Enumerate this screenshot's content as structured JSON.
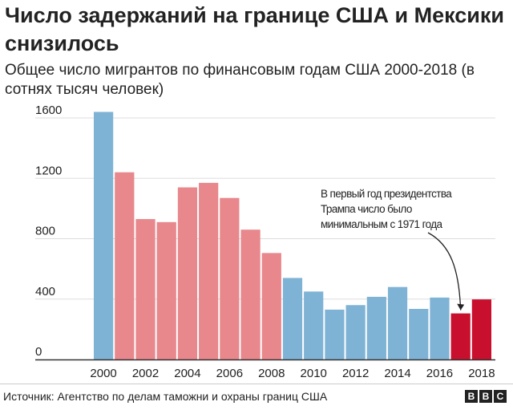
{
  "header": {
    "title": "Число задержаний на границе США и Мексики снизилось",
    "subtitle": "Общее число мигрантов по финансовым годам США 2000-2018 (в сотнях тысяч человек)"
  },
  "chart_data": {
    "type": "bar",
    "title": "Число задержаний на границе США и Мексики снизилось",
    "subtitle": "Общее число мигрантов по финансовым годам США 2000-2018 (в сотнях тысяч человек)",
    "categories": [
      "2000",
      "2001",
      "2002",
      "2003",
      "2004",
      "2005",
      "2006",
      "2007",
      "2008",
      "2009",
      "2010",
      "2011",
      "2012",
      "2013",
      "2014",
      "2015",
      "2016",
      "2017",
      "2018"
    ],
    "values": [
      1640,
      1240,
      930,
      910,
      1140,
      1170,
      1070,
      860,
      705,
      540,
      450,
      330,
      360,
      415,
      480,
      335,
      410,
      305,
      398
    ],
    "x_tick_labels": [
      "2000",
      "",
      "2002",
      "",
      "2004",
      "",
      "2006",
      "",
      "2008",
      "",
      "2010",
      "",
      "2012",
      "",
      "2014",
      "",
      "2016",
      "",
      "2018"
    ],
    "y_ticks": [
      0,
      400,
      800,
      1200,
      1600
    ],
    "y_tick_labels": [
      "0",
      "400",
      "800",
      "1200",
      "1600"
    ],
    "ylim": [
      0,
      1700
    ],
    "grid": true,
    "bar_colors": [
      "#7fb3d5",
      "#e8878c",
      "#e8878c",
      "#e8878c",
      "#e8878c",
      "#e8878c",
      "#e8878c",
      "#e8878c",
      "#e8878c",
      "#7fb3d5",
      "#7fb3d5",
      "#7fb3d5",
      "#7fb3d5",
      "#7fb3d5",
      "#7fb3d5",
      "#7fb3d5",
      "#7fb3d5",
      "#c8102e",
      "#c8102e"
    ],
    "annotation": {
      "lines": [
        "В первый год президентства",
        "Трампа число было",
        "минимальным с 1971 года"
      ],
      "target_category": "2017"
    }
  },
  "footer": {
    "source": "Источник: Агентство по делам таможни и охраны границ США",
    "logo_letters": [
      "B",
      "B",
      "C"
    ]
  },
  "colors": {
    "grid": "#dddddd",
    "axis": "#333333",
    "text": "#222222"
  }
}
